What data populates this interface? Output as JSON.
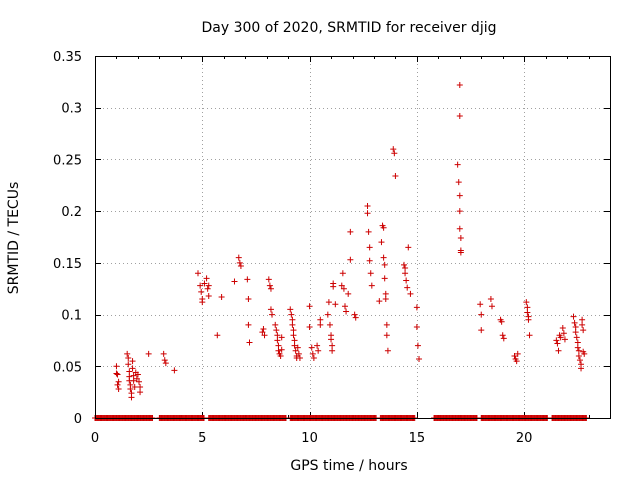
{
  "chart_data": {
    "type": "scatter",
    "title": "Day 300 of 2020, SRMTID for receiver djig",
    "xlabel": "GPS time / hours",
    "ylabel": "SRMTID / TECUs",
    "xlim": [
      0,
      24
    ],
    "ylim": [
      0,
      0.35
    ],
    "x_ticks": [
      0,
      5,
      10,
      15,
      20
    ],
    "x_tick_labels": [
      "0",
      "5",
      "10",
      "15",
      "20"
    ],
    "y_ticks": [
      0,
      0.05,
      0.1,
      0.15,
      0.2,
      0.25,
      0.3,
      0.35
    ],
    "y_tick_labels": [
      "0",
      "0.05",
      "0.1",
      "0.15",
      "0.2",
      "0.25",
      "0.3",
      "0.35"
    ],
    "grid": true,
    "marker": "plus",
    "color": "#cc0000",
    "series": [
      {
        "name": "SRMTID",
        "points": [
          [
            1.0,
            0.05
          ],
          [
            1.0,
            0.043
          ],
          [
            1.05,
            0.042
          ],
          [
            1.05,
            0.032
          ],
          [
            1.1,
            0.028
          ],
          [
            1.1,
            0.035
          ],
          [
            1.5,
            0.062
          ],
          [
            1.55,
            0.058
          ],
          [
            1.55,
            0.052
          ],
          [
            1.6,
            0.045
          ],
          [
            1.6,
            0.04
          ],
          [
            1.6,
            0.036
          ],
          [
            1.65,
            0.032
          ],
          [
            1.65,
            0.028
          ],
          [
            1.7,
            0.024
          ],
          [
            1.7,
            0.02
          ],
          [
            1.75,
            0.055
          ],
          [
            1.75,
            0.048
          ],
          [
            1.8,
            0.041
          ],
          [
            1.8,
            0.036
          ],
          [
            1.85,
            0.03
          ],
          [
            1.9,
            0.044
          ],
          [
            1.95,
            0.038
          ],
          [
            2.0,
            0.042
          ],
          [
            2.05,
            0.035
          ],
          [
            2.1,
            0.03
          ],
          [
            2.1,
            0.025
          ],
          [
            2.5,
            0.062
          ],
          [
            3.2,
            0.062
          ],
          [
            3.25,
            0.056
          ],
          [
            3.3,
            0.053
          ],
          [
            3.7,
            0.046
          ],
          [
            4.8,
            0.14
          ],
          [
            4.9,
            0.128
          ],
          [
            4.95,
            0.122
          ],
          [
            5.0,
            0.115
          ],
          [
            5.0,
            0.112
          ],
          [
            5.1,
            0.13
          ],
          [
            5.2,
            0.135
          ],
          [
            5.25,
            0.125
          ],
          [
            5.3,
            0.128
          ],
          [
            5.3,
            0.118
          ],
          [
            5.7,
            0.08
          ],
          [
            5.9,
            0.117
          ],
          [
            6.5,
            0.132
          ],
          [
            6.7,
            0.155
          ],
          [
            6.75,
            0.15
          ],
          [
            6.8,
            0.147
          ],
          [
            7.1,
            0.134
          ],
          [
            7.15,
            0.115
          ],
          [
            7.15,
            0.09
          ],
          [
            7.2,
            0.073
          ],
          [
            7.8,
            0.083
          ],
          [
            7.85,
            0.086
          ],
          [
            7.9,
            0.08
          ],
          [
            8.1,
            0.134
          ],
          [
            8.15,
            0.128
          ],
          [
            8.2,
            0.125
          ],
          [
            8.2,
            0.105
          ],
          [
            8.25,
            0.1
          ],
          [
            8.4,
            0.09
          ],
          [
            8.45,
            0.085
          ],
          [
            8.5,
            0.08
          ],
          [
            8.5,
            0.075
          ],
          [
            8.55,
            0.07
          ],
          [
            8.55,
            0.065
          ],
          [
            8.6,
            0.062
          ],
          [
            8.65,
            0.06
          ],
          [
            8.7,
            0.078
          ],
          [
            8.7,
            0.066
          ],
          [
            9.1,
            0.105
          ],
          [
            9.15,
            0.1
          ],
          [
            9.2,
            0.095
          ],
          [
            9.2,
            0.09
          ],
          [
            9.25,
            0.085
          ],
          [
            9.25,
            0.08
          ],
          [
            9.3,
            0.075
          ],
          [
            9.3,
            0.07
          ],
          [
            9.35,
            0.065
          ],
          [
            9.4,
            0.06
          ],
          [
            9.4,
            0.058
          ],
          [
            9.45,
            0.068
          ],
          [
            9.5,
            0.062
          ],
          [
            9.55,
            0.058
          ],
          [
            10.0,
            0.108
          ],
          [
            10.0,
            0.088
          ],
          [
            10.1,
            0.068
          ],
          [
            10.15,
            0.062
          ],
          [
            10.2,
            0.058
          ],
          [
            10.35,
            0.07
          ],
          [
            10.4,
            0.065
          ],
          [
            10.5,
            0.09
          ],
          [
            10.5,
            0.095
          ],
          [
            10.85,
            0.1
          ],
          [
            10.9,
            0.112
          ],
          [
            10.95,
            0.09
          ],
          [
            11.0,
            0.08
          ],
          [
            11.0,
            0.076
          ],
          [
            11.05,
            0.07
          ],
          [
            11.05,
            0.065
          ],
          [
            11.1,
            0.13
          ],
          [
            11.1,
            0.127
          ],
          [
            11.2,
            0.11
          ],
          [
            11.5,
            0.128
          ],
          [
            11.55,
            0.14
          ],
          [
            11.6,
            0.125
          ],
          [
            11.65,
            0.108
          ],
          [
            11.7,
            0.103
          ],
          [
            11.8,
            0.12
          ],
          [
            11.9,
            0.153
          ],
          [
            11.9,
            0.18
          ],
          [
            12.1,
            0.1
          ],
          [
            12.15,
            0.097
          ],
          [
            12.7,
            0.205
          ],
          [
            12.7,
            0.198
          ],
          [
            12.75,
            0.18
          ],
          [
            12.8,
            0.165
          ],
          [
            12.8,
            0.152
          ],
          [
            12.85,
            0.14
          ],
          [
            12.9,
            0.128
          ],
          [
            13.25,
            0.113
          ],
          [
            13.35,
            0.17
          ],
          [
            13.4,
            0.186
          ],
          [
            13.45,
            0.184
          ],
          [
            13.45,
            0.155
          ],
          [
            13.5,
            0.148
          ],
          [
            13.5,
            0.135
          ],
          [
            13.55,
            0.12
          ],
          [
            13.55,
            0.115
          ],
          [
            13.6,
            0.09
          ],
          [
            13.6,
            0.08
          ],
          [
            13.65,
            0.065
          ],
          [
            13.9,
            0.26
          ],
          [
            13.95,
            0.256
          ],
          [
            14.0,
            0.234
          ],
          [
            14.4,
            0.148
          ],
          [
            14.45,
            0.145
          ],
          [
            14.45,
            0.14
          ],
          [
            14.5,
            0.133
          ],
          [
            14.55,
            0.126
          ],
          [
            14.6,
            0.165
          ],
          [
            14.7,
            0.12
          ],
          [
            15.0,
            0.107
          ],
          [
            15.0,
            0.088
          ],
          [
            15.05,
            0.07
          ],
          [
            15.1,
            0.057
          ],
          [
            16.9,
            0.245
          ],
          [
            16.95,
            0.228
          ],
          [
            17.0,
            0.322
          ],
          [
            17.0,
            0.292
          ],
          [
            17.0,
            0.215
          ],
          [
            17.0,
            0.2
          ],
          [
            17.0,
            0.183
          ],
          [
            17.05,
            0.174
          ],
          [
            17.05,
            0.162
          ],
          [
            17.05,
            0.16
          ],
          [
            17.95,
            0.11
          ],
          [
            18.0,
            0.1
          ],
          [
            18.0,
            0.085
          ],
          [
            18.45,
            0.115
          ],
          [
            18.5,
            0.108
          ],
          [
            18.9,
            0.095
          ],
          [
            18.95,
            0.093
          ],
          [
            19.0,
            0.08
          ],
          [
            19.05,
            0.077
          ],
          [
            19.55,
            0.06
          ],
          [
            19.6,
            0.057
          ],
          [
            19.65,
            0.055
          ],
          [
            19.7,
            0.062
          ],
          [
            20.1,
            0.112
          ],
          [
            20.15,
            0.107
          ],
          [
            20.15,
            0.102
          ],
          [
            20.2,
            0.098
          ],
          [
            20.2,
            0.095
          ],
          [
            20.25,
            0.08
          ],
          [
            21.5,
            0.075
          ],
          [
            21.55,
            0.072
          ],
          [
            21.6,
            0.065
          ],
          [
            21.65,
            0.08
          ],
          [
            21.7,
            0.078
          ],
          [
            21.8,
            0.087
          ],
          [
            21.85,
            0.082
          ],
          [
            21.9,
            0.076
          ],
          [
            22.3,
            0.098
          ],
          [
            22.35,
            0.092
          ],
          [
            22.4,
            0.088
          ],
          [
            22.4,
            0.083
          ],
          [
            22.45,
            0.078
          ],
          [
            22.5,
            0.073
          ],
          [
            22.5,
            0.068
          ],
          [
            22.55,
            0.065
          ],
          [
            22.55,
            0.06
          ],
          [
            22.6,
            0.056
          ],
          [
            22.65,
            0.052
          ],
          [
            22.65,
            0.048
          ],
          [
            22.7,
            0.095
          ],
          [
            22.7,
            0.09
          ],
          [
            22.75,
            0.085
          ],
          [
            22.75,
            0.064
          ],
          [
            22.8,
            0.062
          ]
        ],
        "zero_ranges": [
          [
            0.0,
            2.7
          ],
          [
            3.0,
            5.1
          ],
          [
            5.3,
            8.9
          ],
          [
            9.1,
            13.1
          ],
          [
            13.3,
            14.9
          ],
          [
            15.8,
            17.8
          ],
          [
            18.0,
            21.1
          ],
          [
            21.3,
            22.9
          ]
        ]
      }
    ]
  }
}
